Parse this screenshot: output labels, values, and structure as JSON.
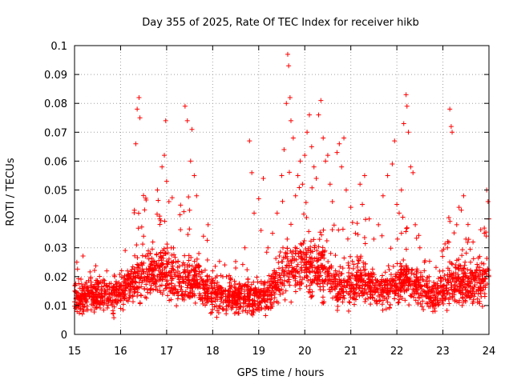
{
  "chart_data": {
    "type": "scatter",
    "title": "Day 355 of 2025, Rate Of TEC Index for receiver hikb",
    "xlabel": "GPS time / hours",
    "ylabel": "ROTI / TECUs",
    "xlim": [
      15,
      24
    ],
    "ylim": [
      0,
      0.1
    ],
    "xticks": [
      15,
      16,
      17,
      18,
      19,
      20,
      21,
      22,
      23,
      24
    ],
    "yticks": [
      0,
      0.01,
      0.02,
      0.03,
      0.04,
      0.05,
      0.06,
      0.07,
      0.08,
      0.09,
      0.1
    ],
    "ytick_labels": [
      "0",
      "0.01",
      "0.02",
      "0.03",
      "0.04",
      "0.05",
      "0.06",
      "0.07",
      "0.08",
      "0.09",
      "0.1"
    ],
    "grid": true,
    "marker": "+",
    "series": [
      {
        "name": "ROTI",
        "color": "#ff0000",
        "points": [
          [
            15.05,
            0.025
          ],
          [
            15.1,
            0.012
          ],
          [
            15.2,
            0.008
          ],
          [
            15.3,
            0.015
          ],
          [
            15.4,
            0.01
          ],
          [
            15.5,
            0.018
          ],
          [
            15.6,
            0.013
          ],
          [
            15.7,
            0.022
          ],
          [
            15.8,
            0.011
          ],
          [
            15.9,
            0.016
          ],
          [
            16.0,
            0.009
          ],
          [
            16.1,
            0.014
          ],
          [
            16.2,
            0.02
          ],
          [
            16.3,
            0.043
          ],
          [
            16.33,
            0.066
          ],
          [
            16.36,
            0.078
          ],
          [
            16.4,
            0.082
          ],
          [
            16.42,
            0.075
          ],
          [
            16.5,
            0.034
          ],
          [
            16.6,
            0.028
          ],
          [
            16.7,
            0.032
          ],
          [
            16.8,
            0.05
          ],
          [
            16.85,
            0.04
          ],
          [
            16.9,
            0.058
          ],
          [
            16.95,
            0.062
          ],
          [
            16.98,
            0.074
          ],
          [
            17.0,
            0.053
          ],
          [
            17.05,
            0.046
          ],
          [
            17.1,
            0.03
          ],
          [
            17.2,
            0.025
          ],
          [
            17.3,
            0.02
          ],
          [
            17.4,
            0.079
          ],
          [
            17.45,
            0.074
          ],
          [
            17.5,
            0.043
          ],
          [
            17.52,
            0.06
          ],
          [
            17.55,
            0.071
          ],
          [
            17.6,
            0.055
          ],
          [
            17.65,
            0.048
          ],
          [
            17.7,
            0.028
          ],
          [
            17.8,
            0.034
          ],
          [
            17.9,
            0.038
          ],
          [
            18.0,
            0.022
          ],
          [
            18.1,
            0.018
          ],
          [
            18.2,
            0.015
          ],
          [
            18.3,
            0.02
          ],
          [
            18.4,
            0.017
          ],
          [
            18.5,
            0.023
          ],
          [
            18.6,
            0.014
          ],
          [
            18.7,
            0.03
          ],
          [
            18.8,
            0.067
          ],
          [
            18.85,
            0.056
          ],
          [
            18.9,
            0.042
          ],
          [
            19.0,
            0.047
          ],
          [
            19.05,
            0.036
          ],
          [
            19.1,
            0.054
          ],
          [
            19.2,
            0.03
          ],
          [
            19.3,
            0.035
          ],
          [
            19.4,
            0.042
          ],
          [
            19.5,
            0.055
          ],
          [
            19.55,
            0.064
          ],
          [
            19.6,
            0.08
          ],
          [
            19.63,
            0.097
          ],
          [
            19.65,
            0.093
          ],
          [
            19.68,
            0.082
          ],
          [
            19.7,
            0.074
          ],
          [
            19.75,
            0.068
          ],
          [
            19.8,
            0.048
          ],
          [
            19.85,
            0.055
          ],
          [
            19.9,
            0.06
          ],
          [
            19.95,
            0.052
          ],
          [
            20.0,
            0.062
          ],
          [
            20.05,
            0.07
          ],
          [
            20.1,
            0.076
          ],
          [
            20.15,
            0.065
          ],
          [
            20.2,
            0.058
          ],
          [
            20.25,
            0.054
          ],
          [
            20.3,
            0.076
          ],
          [
            20.35,
            0.081
          ],
          [
            20.4,
            0.068
          ],
          [
            20.45,
            0.06
          ],
          [
            20.5,
            0.062
          ],
          [
            20.55,
            0.052
          ],
          [
            20.6,
            0.046
          ],
          [
            20.7,
            0.063
          ],
          [
            20.75,
            0.066
          ],
          [
            20.8,
            0.058
          ],
          [
            20.85,
            0.068
          ],
          [
            20.9,
            0.05
          ],
          [
            21.0,
            0.044
          ],
          [
            21.1,
            0.035
          ],
          [
            21.2,
            0.052
          ],
          [
            21.25,
            0.045
          ],
          [
            21.3,
            0.055
          ],
          [
            21.4,
            0.04
          ],
          [
            21.5,
            0.033
          ],
          [
            21.6,
            0.038
          ],
          [
            21.7,
            0.048
          ],
          [
            21.8,
            0.055
          ],
          [
            21.9,
            0.059
          ],
          [
            21.95,
            0.067
          ],
          [
            22.0,
            0.045
          ],
          [
            22.05,
            0.042
          ],
          [
            22.1,
            0.05
          ],
          [
            22.15,
            0.073
          ],
          [
            22.2,
            0.083
          ],
          [
            22.22,
            0.079
          ],
          [
            22.25,
            0.07
          ],
          [
            22.3,
            0.058
          ],
          [
            22.35,
            0.056
          ],
          [
            22.4,
            0.038
          ],
          [
            22.5,
            0.03
          ],
          [
            22.6,
            0.025
          ],
          [
            22.7,
            0.02
          ],
          [
            22.8,
            0.018
          ],
          [
            22.9,
            0.016
          ],
          [
            23.0,
            0.022
          ],
          [
            23.1,
            0.03
          ],
          [
            23.15,
            0.078
          ],
          [
            23.18,
            0.072
          ],
          [
            23.2,
            0.07
          ],
          [
            23.3,
            0.038
          ],
          [
            23.35,
            0.044
          ],
          [
            23.4,
            0.043
          ],
          [
            23.45,
            0.048
          ],
          [
            23.5,
            0.033
          ],
          [
            23.6,
            0.025
          ],
          [
            23.7,
            0.02
          ],
          [
            23.8,
            0.022
          ],
          [
            23.9,
            0.035
          ],
          [
            23.95,
            0.05
          ],
          [
            23.98,
            0.046
          ],
          [
            24.0,
            0.04
          ]
        ]
      }
    ]
  }
}
